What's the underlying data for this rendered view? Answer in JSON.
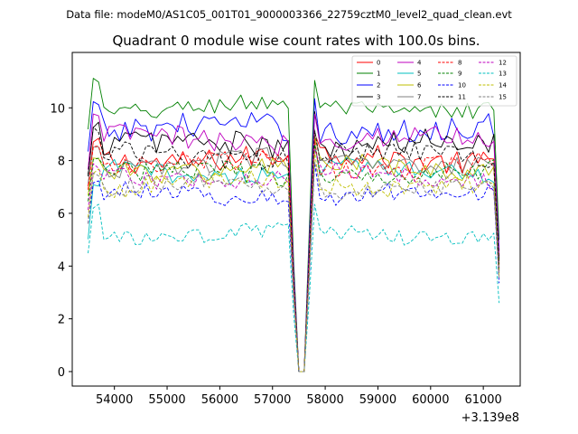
{
  "chart_data": {
    "type": "line",
    "suptitle": "Data file: modeM0/AS1C05_001T01_9000003366_22759cztM0_level2_quad_clean.evt",
    "title": "Quadrant 0 module wise count rates with 100.0s bins.",
    "xlabel": "",
    "ylabel": "",
    "x_offset_label": "+3.139e8",
    "xlim": [
      53200,
      61700
    ],
    "ylim": [
      -0.55,
      12.1
    ],
    "x_ticks": [
      54000,
      55000,
      56000,
      57000,
      58000,
      59000,
      60000,
      61000
    ],
    "x_tick_labels": [
      "54000",
      "55000",
      "56000",
      "57000",
      "58000",
      "59000",
      "60000",
      "61000"
    ],
    "y_ticks": [
      0,
      2,
      4,
      6,
      8,
      10
    ],
    "y_tick_labels": [
      "0",
      "2",
      "4",
      "6",
      "8",
      "10"
    ],
    "grid": false,
    "legend_position": "upper right",
    "x_start": 53500,
    "bin_seconds": 100,
    "n_bins": 79,
    "gap_bins": [
      40,
      41
    ],
    "series": [
      {
        "name": "0",
        "color": "#ff0000",
        "dashed": false,
        "mean": 8.1,
        "startup": 9.0,
        "amp": 0.45
      },
      {
        "name": "1",
        "color": "#008000",
        "dashed": false,
        "mean": 10.0,
        "startup": 11.2,
        "amp": 0.35
      },
      {
        "name": "2",
        "color": "#0000ff",
        "dashed": false,
        "mean": 9.2,
        "startup": 10.4,
        "amp": 0.5
      },
      {
        "name": "3",
        "color": "#000000",
        "dashed": false,
        "mean": 8.6,
        "startup": 9.5,
        "amp": 0.5
      },
      {
        "name": "4",
        "color": "#bf00bf",
        "dashed": false,
        "mean": 8.8,
        "startup": 9.8,
        "amp": 0.45
      },
      {
        "name": "5",
        "color": "#00bfbf",
        "dashed": false,
        "mean": 7.6,
        "startup": 7.2,
        "amp": 0.35
      },
      {
        "name": "6",
        "color": "#bfbf00",
        "dashed": false,
        "mean": 7.7,
        "startup": 8.3,
        "amp": 0.4
      },
      {
        "name": "7",
        "color": "#808080",
        "dashed": false,
        "mean": 7.9,
        "startup": 8.8,
        "amp": 0.4
      },
      {
        "name": "8",
        "color": "#ff0000",
        "dashed": true,
        "mean": 7.8,
        "startup": 8.6,
        "amp": 0.45
      },
      {
        "name": "9",
        "color": "#008000",
        "dashed": true,
        "mean": 7.5,
        "startup": 8.2,
        "amp": 0.4
      },
      {
        "name": "10",
        "color": "#0000ff",
        "dashed": true,
        "mean": 6.7,
        "startup": 7.4,
        "amp": 0.35
      },
      {
        "name": "11",
        "color": "#000000",
        "dashed": true,
        "mean": 8.2,
        "startup": 9.3,
        "amp": 0.4
      },
      {
        "name": "12",
        "color": "#bf00bf",
        "dashed": true,
        "mean": 7.4,
        "startup": 8.0,
        "amp": 0.35
      },
      {
        "name": "13",
        "color": "#00bfbf",
        "dashed": true,
        "mean": 5.2,
        "startup": 6.4,
        "amp": 0.3
      },
      {
        "name": "14",
        "color": "#bfbf00",
        "dashed": true,
        "mean": 7.1,
        "startup": 7.8,
        "amp": 0.35
      },
      {
        "name": "15",
        "color": "#808080",
        "dashed": true,
        "mean": 7.0,
        "startup": 7.6,
        "amp": 0.35
      }
    ]
  }
}
